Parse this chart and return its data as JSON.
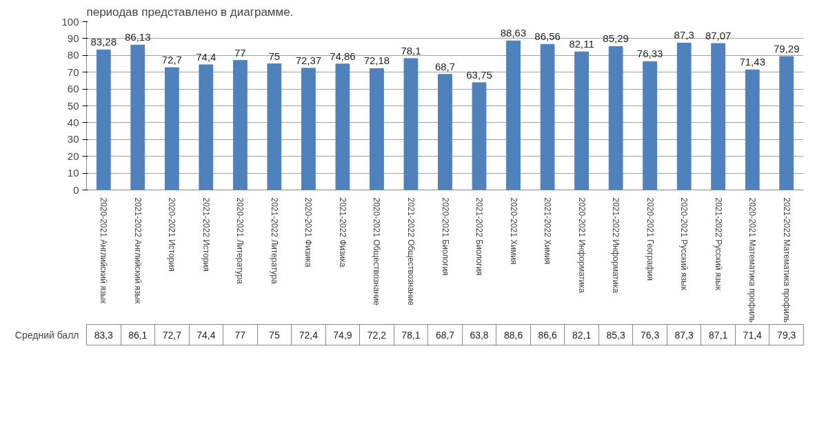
{
  "chart_data": {
    "type": "bar",
    "categories": [
      "2020-2021 Английский язык",
      "2021-2022 Английский язык",
      "2020-2021 История",
      "2021-2022 История",
      "2020-2021 Литература",
      "2021-2022 Литература",
      "2020-2021 Физика",
      "2021-2022 Физика",
      "2020-2021 Обществознание",
      "2021-2022 Обществознание",
      "2020-2021 Биология",
      "2021-2022 Биология",
      "2020-2021 Химия",
      "2021-2022 Химия",
      "2020-2021 Информатика",
      "2021-2022 Информатика",
      "2020-2021 География",
      "2020-2021 Русский язык",
      "2021-2022 Русский язык",
      "2020-2021 Математика профиль",
      "2021-2022 Математика профиль"
    ],
    "series": [
      {
        "name": "Средний балл",
        "color": "#4f81bd",
        "values": [
          83.28,
          86.13,
          72.7,
          74.4,
          77,
          75,
          72.37,
          74.86,
          72.18,
          78.1,
          68.7,
          63.75,
          88.63,
          86.56,
          82.11,
          85.29,
          76.33,
          87.3,
          87.07,
          71.43,
          79.29
        ],
        "value_labels": [
          "83,28",
          "86,13",
          "72,7",
          "74,4",
          "77",
          "75",
          "72,37",
          "74,86",
          "72,18",
          "78,1",
          "68,7",
          "63,75",
          "88,63",
          "86,56",
          "82,11",
          "85,29",
          "76,33",
          "87,3",
          "87,07",
          "71,43",
          "79,29"
        ]
      }
    ],
    "ylim": [
      0,
      100
    ],
    "yticks": [
      0,
      10,
      20,
      30,
      40,
      50,
      60,
      70,
      80,
      90,
      100
    ],
    "grid": "y",
    "data_labels": true,
    "annotations": [
      "периодав представлено в диаграмме.",
      "83,3",
      "86,1",
      "72,7",
      "74,4",
      "77",
      "75",
      "72,4",
      "74,9",
      "72,2",
      "78,1",
      "68,7",
      "63,8",
      "88,6",
      "86,6",
      "82,1",
      "85,3",
      "76,3",
      "87,3",
      "87,1",
      "71,4",
      "79,3"
    ]
  }
}
